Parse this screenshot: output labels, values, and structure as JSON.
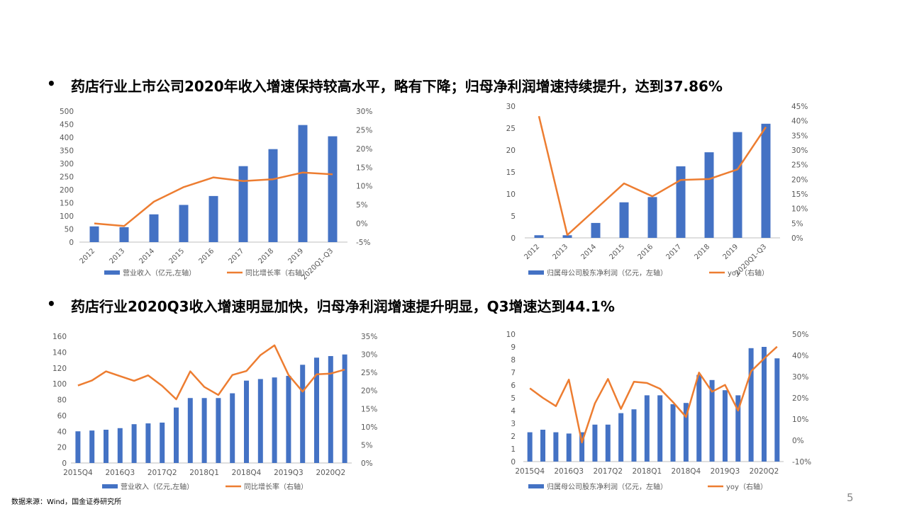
{
  "headlines": {
    "h1": "药店行业上市公司2020年收入增速保持较高水平，略有下降；归母净利润增速持续提升，达到37.86%",
    "h2": "药店行业2020Q3收入增速明显加快，归母净利润增速提升明显，Q3增速达到44.1%"
  },
  "bullet": "•",
  "source": "数据来源：Wind，国金证券研究所",
  "page_number": "5",
  "colors": {
    "bar": "#4472C4",
    "line": "#ED7D31",
    "axis": "#BFBFBF",
    "text": "#595959"
  },
  "chart_data": [
    {
      "type": "bar",
      "categories": [
        "2012",
        "2013",
        "2014",
        "2015",
        "2016",
        "2017",
        "2018",
        "2019",
        "2020Q1-Q3"
      ],
      "series": [
        {
          "name": "营业收入（亿元,左轴）",
          "type": "bar",
          "axis": "left",
          "values": [
            60,
            57,
            106,
            142,
            176,
            290,
            355,
            447,
            404
          ]
        },
        {
          "name": "同比增长率（右轴）",
          "type": "line",
          "axis": "right",
          "values": [
            0.0,
            -0.7,
            5.8,
            9.7,
            12.3,
            11.3,
            11.8,
            13.6,
            13.1
          ]
        }
      ],
      "left_axis": {
        "ticks": [
          "0",
          "50",
          "100",
          "150",
          "200",
          "250",
          "300",
          "350",
          "400",
          "450",
          "500"
        ],
        "min": 0,
        "max": 500
      },
      "right_axis": {
        "ticks": [
          "-5%",
          "0%",
          "5%",
          "10%",
          "15%",
          "20%",
          "25%",
          "30%"
        ],
        "min": -5,
        "max": 30
      },
      "legend": "bottom"
    },
    {
      "type": "bar",
      "categories": [
        "2012",
        "2013",
        "2014",
        "2015",
        "2016",
        "2017",
        "2018",
        "2019",
        "2020Q1-Q3"
      ],
      "series": [
        {
          "name": "归属母公司股东净利润（亿元，左轴）",
          "type": "bar",
          "axis": "left",
          "values": [
            0.6,
            0.6,
            3.4,
            8.1,
            9.3,
            16.3,
            19.5,
            24.1,
            26.0
          ]
        },
        {
          "name": "yoy（右轴）",
          "type": "line",
          "axis": "right",
          "values": [
            41.6,
            1.0,
            9.8,
            18.6,
            14.2,
            19.8,
            20.1,
            23.4,
            37.86
          ]
        }
      ],
      "left_axis": {
        "ticks": [
          "0",
          "5",
          "10",
          "15",
          "20",
          "25",
          "30"
        ],
        "min": 0,
        "max": 30
      },
      "right_axis": {
        "ticks": [
          "0%",
          "5%",
          "10%",
          "15%",
          "20%",
          "25%",
          "30%",
          "35%",
          "40%",
          "45%"
        ],
        "min": 0,
        "max": 45
      },
      "legend": "bottom"
    },
    {
      "type": "bar",
      "categories": [
        "2015Q4",
        "2016Q1",
        "2016Q2",
        "2016Q3",
        "2016Q4",
        "2017Q1",
        "2017Q2",
        "2017Q3",
        "2017Q4",
        "2018Q1",
        "2018Q2",
        "2018Q3",
        "2018Q4",
        "2019Q1",
        "2019Q2",
        "2019Q3",
        "2019Q4",
        "2020Q1",
        "2020Q2",
        "2020Q3"
      ],
      "category_labels": [
        "2015Q4",
        "",
        "",
        "2016Q3",
        "",
        "",
        "2017Q2",
        "",
        "",
        "2018Q1",
        "",
        "",
        "2018Q4",
        "",
        "",
        "2019Q3",
        "",
        "",
        "2020Q2",
        ""
      ],
      "series": [
        {
          "name": "营业收入（亿元,左轴）",
          "type": "bar",
          "axis": "left",
          "values": [
            40,
            41,
            42,
            44,
            49,
            50,
            51,
            70,
            82,
            82,
            82,
            88,
            104,
            106,
            108,
            110,
            124,
            133,
            135,
            137
          ]
        },
        {
          "name": "同比增长率（右轴）",
          "type": "line",
          "axis": "right",
          "values": [
            21.4,
            22.8,
            25.3,
            24.0,
            22.7,
            24.2,
            21.3,
            17.6,
            25.3,
            21.0,
            18.8,
            24.3,
            25.4,
            29.8,
            32.5,
            24.3,
            19.7,
            24.5,
            24.7,
            25.8
          ]
        }
      ],
      "left_axis": {
        "ticks": [
          "0",
          "20",
          "40",
          "60",
          "80",
          "100",
          "120",
          "140",
          "160"
        ],
        "min": 0,
        "max": 160
      },
      "right_axis": {
        "ticks": [
          "0%",
          "5%",
          "10%",
          "15%",
          "20%",
          "25%",
          "30%",
          "35%"
        ],
        "min": 0,
        "max": 35
      },
      "legend": "bottom"
    },
    {
      "type": "bar",
      "categories": [
        "2015Q4",
        "2016Q1",
        "2016Q2",
        "2016Q3",
        "2016Q4",
        "2017Q1",
        "2017Q2",
        "2017Q3",
        "2017Q4",
        "2018Q1",
        "2018Q2",
        "2018Q3",
        "2018Q4",
        "2019Q1",
        "2019Q2",
        "2019Q3",
        "2019Q4",
        "2020Q1",
        "2020Q2",
        "2020Q3"
      ],
      "category_labels": [
        "2015Q4",
        "",
        "",
        "2016Q3",
        "",
        "",
        "2017Q2",
        "",
        "",
        "2018Q1",
        "",
        "",
        "2018Q4",
        "",
        "",
        "2019Q3",
        "",
        "",
        "2020Q2",
        ""
      ],
      "series": [
        {
          "name": "归属母公司股东净利润（亿元，左轴）",
          "type": "bar",
          "axis": "left",
          "values": [
            2.3,
            2.5,
            2.3,
            2.2,
            2.3,
            2.9,
            2.9,
            3.8,
            4.1,
            5.2,
            5.2,
            4.5,
            4.6,
            6.8,
            6.4,
            5.6,
            5.2,
            8.9,
            9.0,
            8.1
          ]
        },
        {
          "name": "yoy（右轴）",
          "type": "line",
          "axis": "right",
          "values": [
            24.5,
            20.0,
            16.1,
            28.6,
            -1.0,
            17.4,
            28.9,
            14.8,
            27.6,
            27.0,
            24.3,
            18.0,
            11.0,
            31.9,
            22.9,
            26.1,
            14.0,
            32.5,
            38.5,
            44.1
          ]
        }
      ],
      "left_axis": {
        "ticks": [
          "0",
          "1",
          "2",
          "3",
          "4",
          "5",
          "6",
          "7",
          "8",
          "9",
          "10"
        ],
        "min": 0,
        "max": 10
      },
      "right_axis": {
        "ticks": [
          "-10%",
          "0%",
          "10%",
          "20%",
          "30%",
          "40%",
          "50%"
        ],
        "min": -10,
        "max": 50
      },
      "legend": "bottom"
    }
  ]
}
